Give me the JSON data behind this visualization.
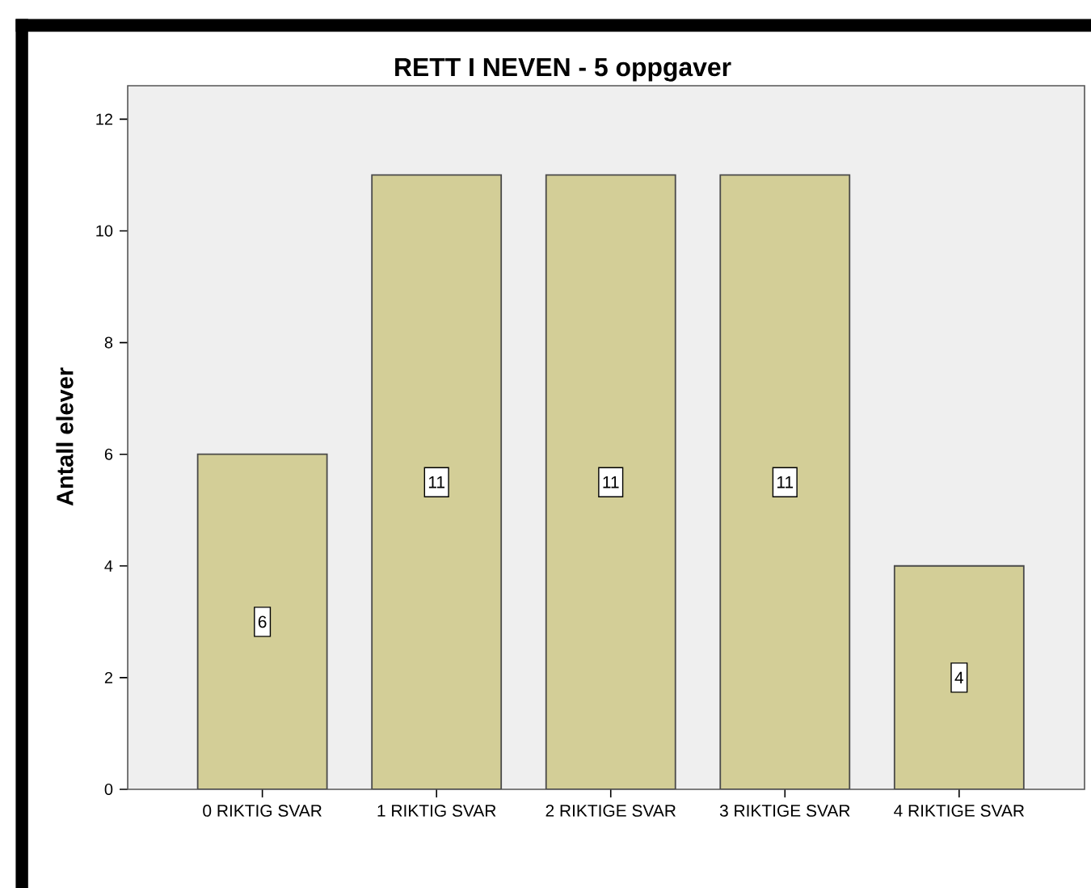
{
  "chart_data": {
    "type": "bar",
    "title": "RETT I NEVEN - 5 oppgaver",
    "ylabel": "Antall elever",
    "categories": [
      "0 RIKTIG SVAR",
      "1 RIKTIG SVAR",
      "2 RIKTIGE SVAR",
      "3 RIKTIGE SVAR",
      "4 RIKTIGE SVAR"
    ],
    "values": [
      6,
      11,
      11,
      11,
      4
    ],
    "color": "#d3ce97",
    "ylim": [
      0,
      12.6
    ],
    "yticks": [
      0,
      2,
      4,
      6,
      8,
      10,
      12
    ],
    "data_labels": true
  }
}
